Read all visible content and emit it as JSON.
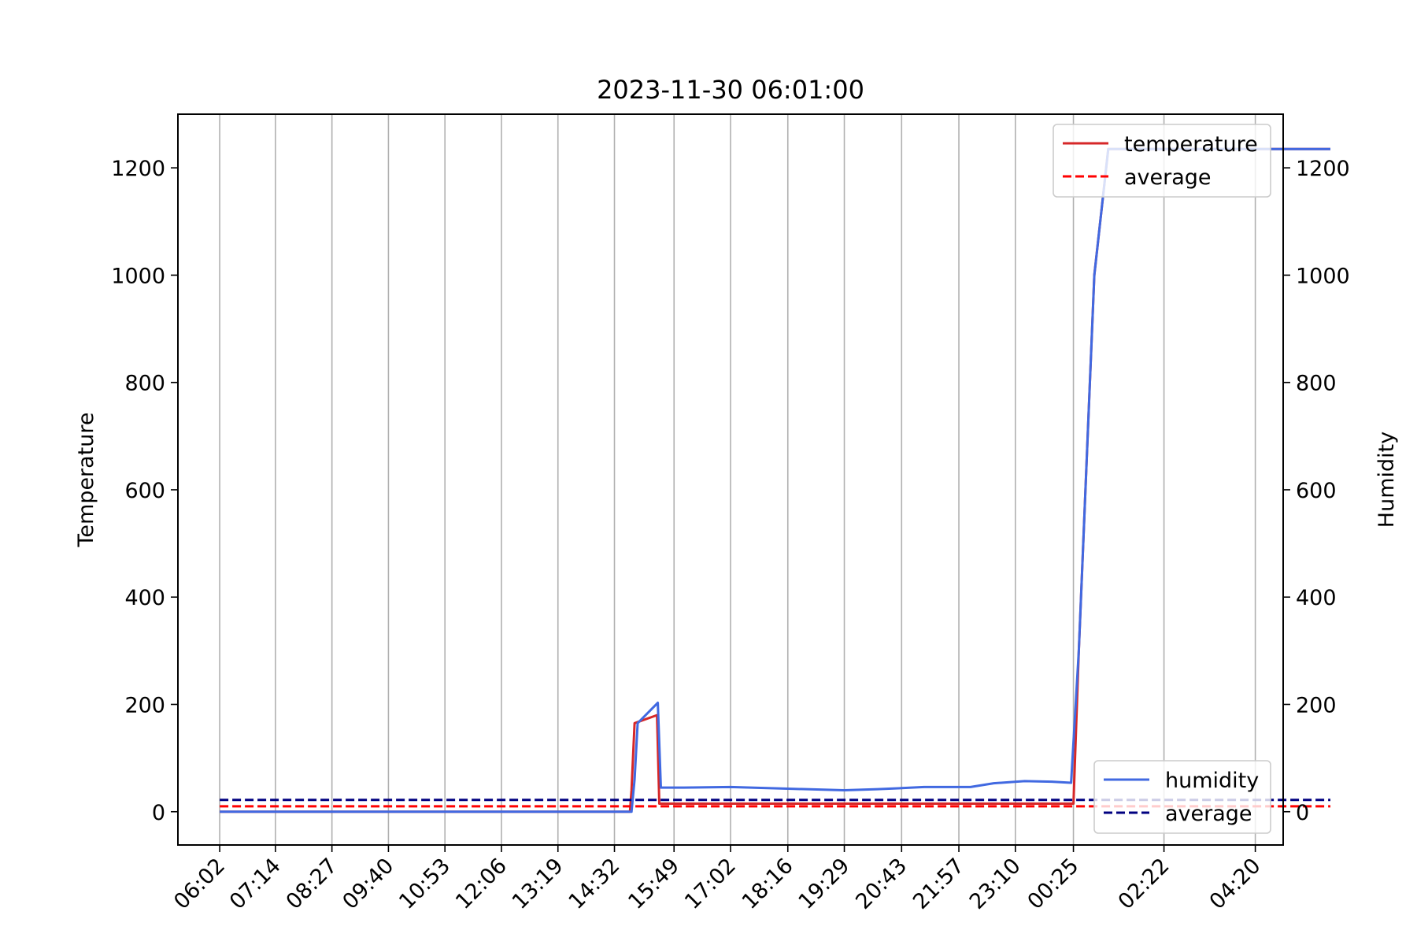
{
  "chart_data": {
    "type": "line",
    "title": "2023-11-30 06:01:00",
    "ylabel_left": "Temperature",
    "ylabel_right": "Humidity",
    "ylim_left": [
      -62,
      1300
    ],
    "ylim_right": [
      -62,
      1300
    ],
    "yticks_left": [
      0,
      200,
      400,
      600,
      800,
      1000,
      1200
    ],
    "yticks_right": [
      0,
      200,
      400,
      600,
      800,
      1000,
      1200
    ],
    "grid": "vertical",
    "x_unit": "minutes_since_06:02",
    "xlim": [
      -54,
      1374
    ],
    "xticks": [
      {
        "t": 0,
        "label": "06:02"
      },
      {
        "t": 72,
        "label": "07:14"
      },
      {
        "t": 145,
        "label": "08:27"
      },
      {
        "t": 218,
        "label": "09:40"
      },
      {
        "t": 291,
        "label": "10:53"
      },
      {
        "t": 364,
        "label": "12:06"
      },
      {
        "t": 437,
        "label": "13:19"
      },
      {
        "t": 510,
        "label": "14:32"
      },
      {
        "t": 587,
        "label": "15:49"
      },
      {
        "t": 660,
        "label": "17:02"
      },
      {
        "t": 734,
        "label": "18:16"
      },
      {
        "t": 807,
        "label": "19:29"
      },
      {
        "t": 881,
        "label": "20:43"
      },
      {
        "t": 955,
        "label": "21:57"
      },
      {
        "t": 1028,
        "label": "23:10"
      },
      {
        "t": 1103,
        "label": "00:25"
      },
      {
        "t": 1220,
        "label": "02:22"
      },
      {
        "t": 1338,
        "label": "04:20"
      }
    ],
    "legend_left": {
      "position": "top-right",
      "entries": [
        "temperature",
        "average"
      ]
    },
    "legend_right": {
      "position": "bottom-right",
      "entries": [
        "humidity",
        "average"
      ]
    },
    "series": [
      {
        "name": "temperature",
        "axis": "left",
        "color": "#d62728",
        "style": "solid",
        "points": [
          [
            0,
            0
          ],
          [
            530,
            0
          ],
          [
            532,
            40
          ],
          [
            536,
            165
          ],
          [
            565,
            180
          ],
          [
            568,
            15
          ],
          [
            570,
            15
          ],
          [
            1100,
            15
          ],
          [
            1103,
            15
          ],
          [
            1110,
            300
          ],
          [
            1130,
            1000
          ],
          [
            1148,
            1235
          ],
          [
            1435,
            1235
          ]
        ]
      },
      {
        "name": "average",
        "axis": "left",
        "color": "#ff0000",
        "style": "dashed",
        "points": [
          [
            0,
            10
          ],
          [
            1435,
            10
          ]
        ]
      },
      {
        "name": "humidity",
        "axis": "right",
        "color": "#4169e1",
        "style": "solid",
        "points": [
          [
            0,
            0
          ],
          [
            532,
            0
          ],
          [
            536,
            60
          ],
          [
            540,
            165
          ],
          [
            566,
            203
          ],
          [
            570,
            45
          ],
          [
            600,
            45
          ],
          [
            660,
            46
          ],
          [
            734,
            43
          ],
          [
            807,
            40
          ],
          [
            850,
            42
          ],
          [
            881,
            44
          ],
          [
            910,
            46
          ],
          [
            970,
            46
          ],
          [
            1000,
            53
          ],
          [
            1040,
            57
          ],
          [
            1075,
            56
          ],
          [
            1100,
            54
          ],
          [
            1110,
            300
          ],
          [
            1130,
            1000
          ],
          [
            1148,
            1235
          ],
          [
            1435,
            1235
          ]
        ]
      },
      {
        "name": "average",
        "axis": "right",
        "color": "#000080",
        "style": "dashed",
        "points": [
          [
            0,
            22
          ],
          [
            1435,
            22
          ]
        ]
      }
    ]
  }
}
